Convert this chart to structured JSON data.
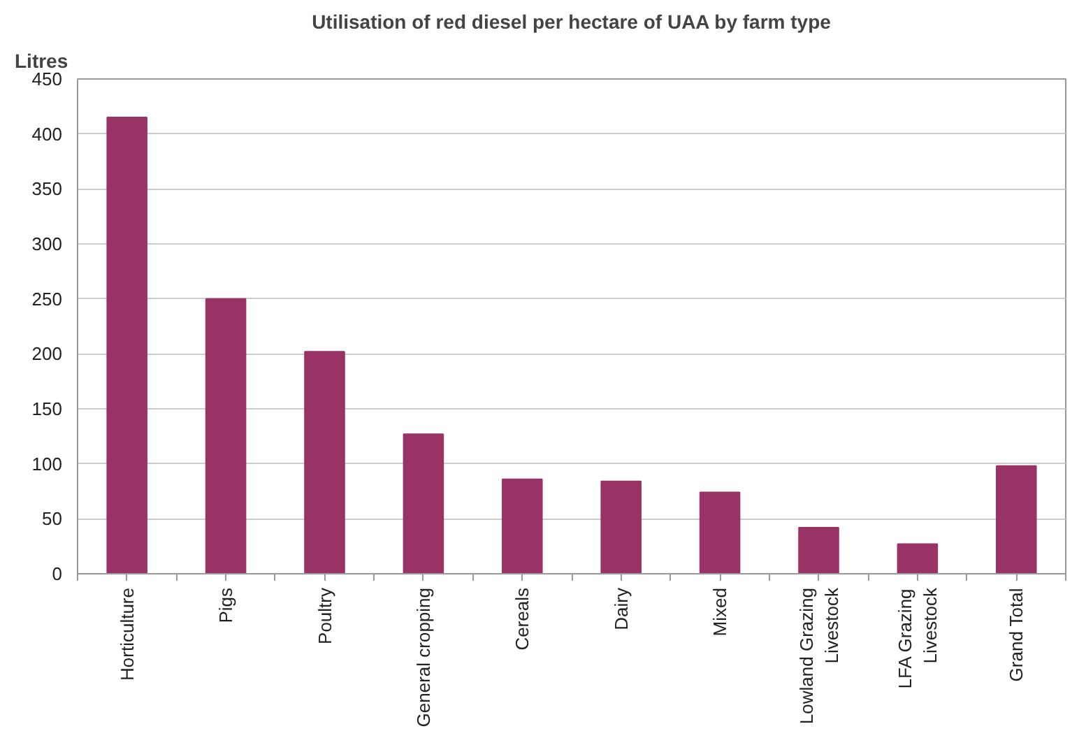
{
  "chart_data": {
    "type": "bar",
    "title": "Utilisation of red diesel per hectare of UAA by farm type",
    "ylabel": "Litres",
    "categories": [
      "Horticulture",
      "Pigs",
      "Poultry",
      "General cropping",
      "Cereals",
      "Dairy",
      "Mixed",
      "Lowland Grazing\nLivestock",
      "LFA Grazing\nLivestock",
      "Grand Total"
    ],
    "values": [
      415,
      250,
      202,
      127,
      86,
      84,
      74,
      42,
      27,
      98
    ],
    "color": "#993366",
    "ylim": [
      0,
      450
    ],
    "yticks": [
      0,
      50,
      100,
      150,
      200,
      250,
      300,
      350,
      400,
      450
    ],
    "grid": "y"
  }
}
